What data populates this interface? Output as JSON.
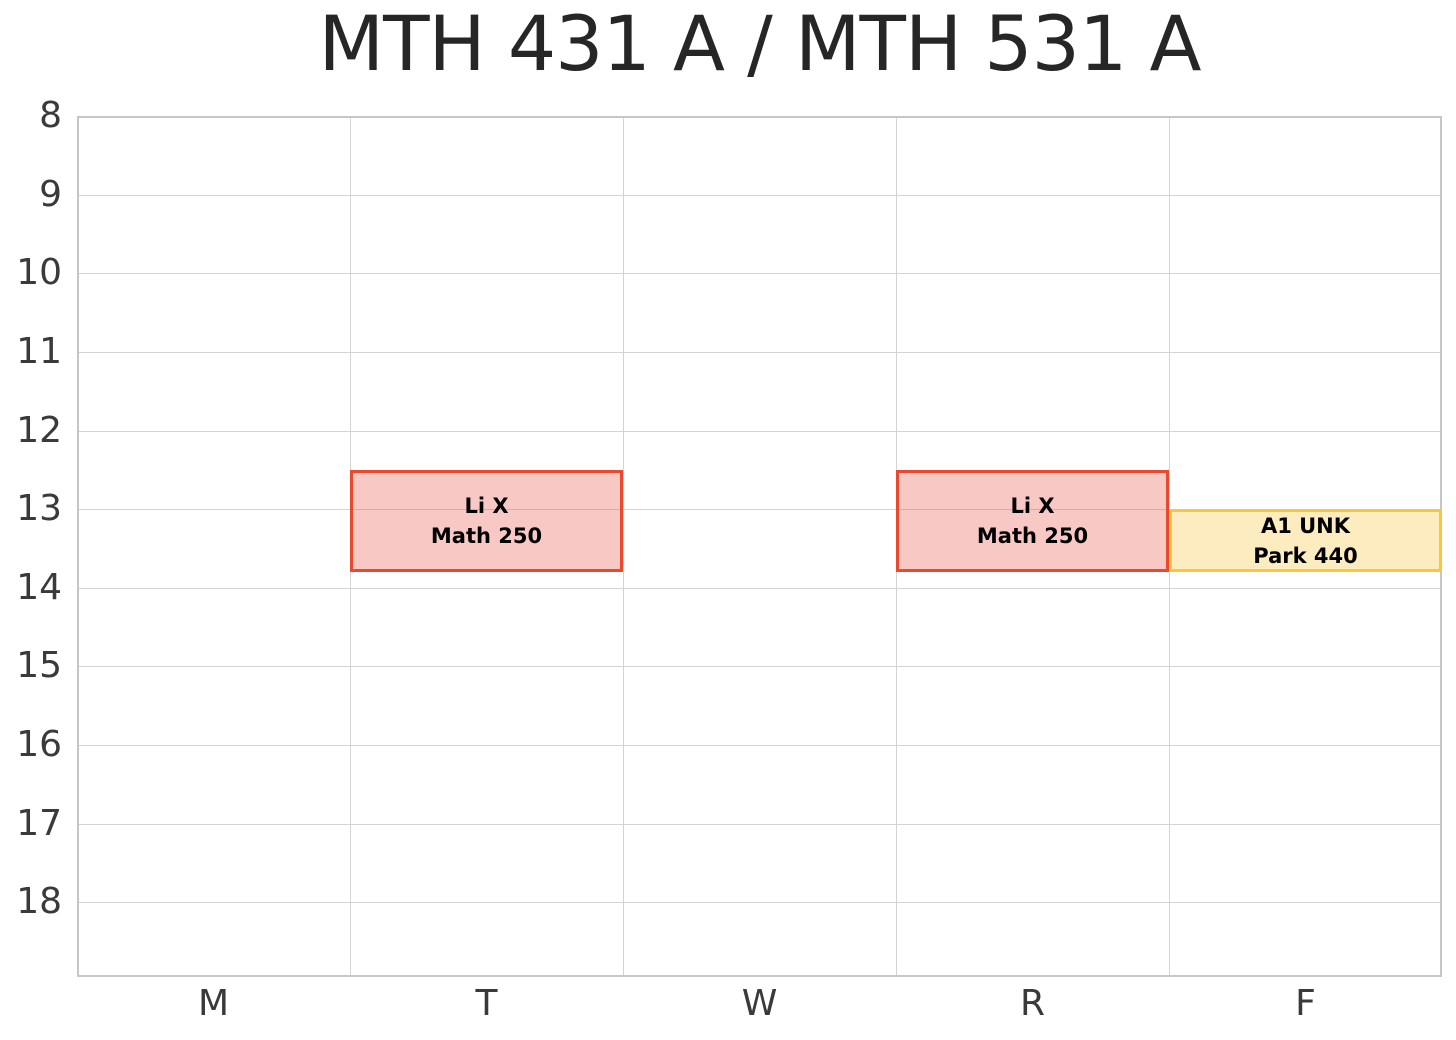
{
  "title": "MTH 431 A / MTH 531 A",
  "chart_data": {
    "type": "schedule",
    "title": "MTH 431 A / MTH 531 A",
    "x_categories": [
      "M",
      "T",
      "W",
      "R",
      "F"
    ],
    "y_axis": {
      "tick_labels": [
        "8",
        "9",
        "10",
        "11",
        "12",
        "13",
        "14",
        "15",
        "16",
        "17",
        "18"
      ],
      "ticks": [
        8,
        9,
        10,
        11,
        12,
        13,
        14,
        15,
        16,
        17,
        18
      ],
      "min": 8,
      "max": 18.95,
      "direction": "down",
      "unit": "hour_of_day"
    },
    "grid": true,
    "legend": "none",
    "events": [
      {
        "day": "T",
        "start_hour": 12.5,
        "end_hour": 13.8,
        "label": "Li X",
        "sublabel": "Math 250",
        "border_color": "#e8492f",
        "fill_rgba": "rgba(231, 76, 60, 0.30)"
      },
      {
        "day": "R",
        "start_hour": 12.5,
        "end_hour": 13.8,
        "label": "Li X",
        "sublabel": "Math 250",
        "border_color": "#e8492f",
        "fill_rgba": "rgba(231, 76, 60, 0.30)"
      },
      {
        "day": "F",
        "start_hour": 13.0,
        "end_hour": 13.8,
        "label": "A1 UNK",
        "sublabel": "Park 440",
        "border_color": "#fcc53e",
        "fill_rgba": "rgba(252, 197, 62, 0.32)"
      }
    ],
    "colors": {
      "grid_line": "#d4d4d4",
      "axis_spine": "#c6c6c6",
      "title_text": "#262626",
      "tick_text": "#3a3a3a",
      "event_text": "#000000",
      "background": "#ffffff"
    }
  }
}
